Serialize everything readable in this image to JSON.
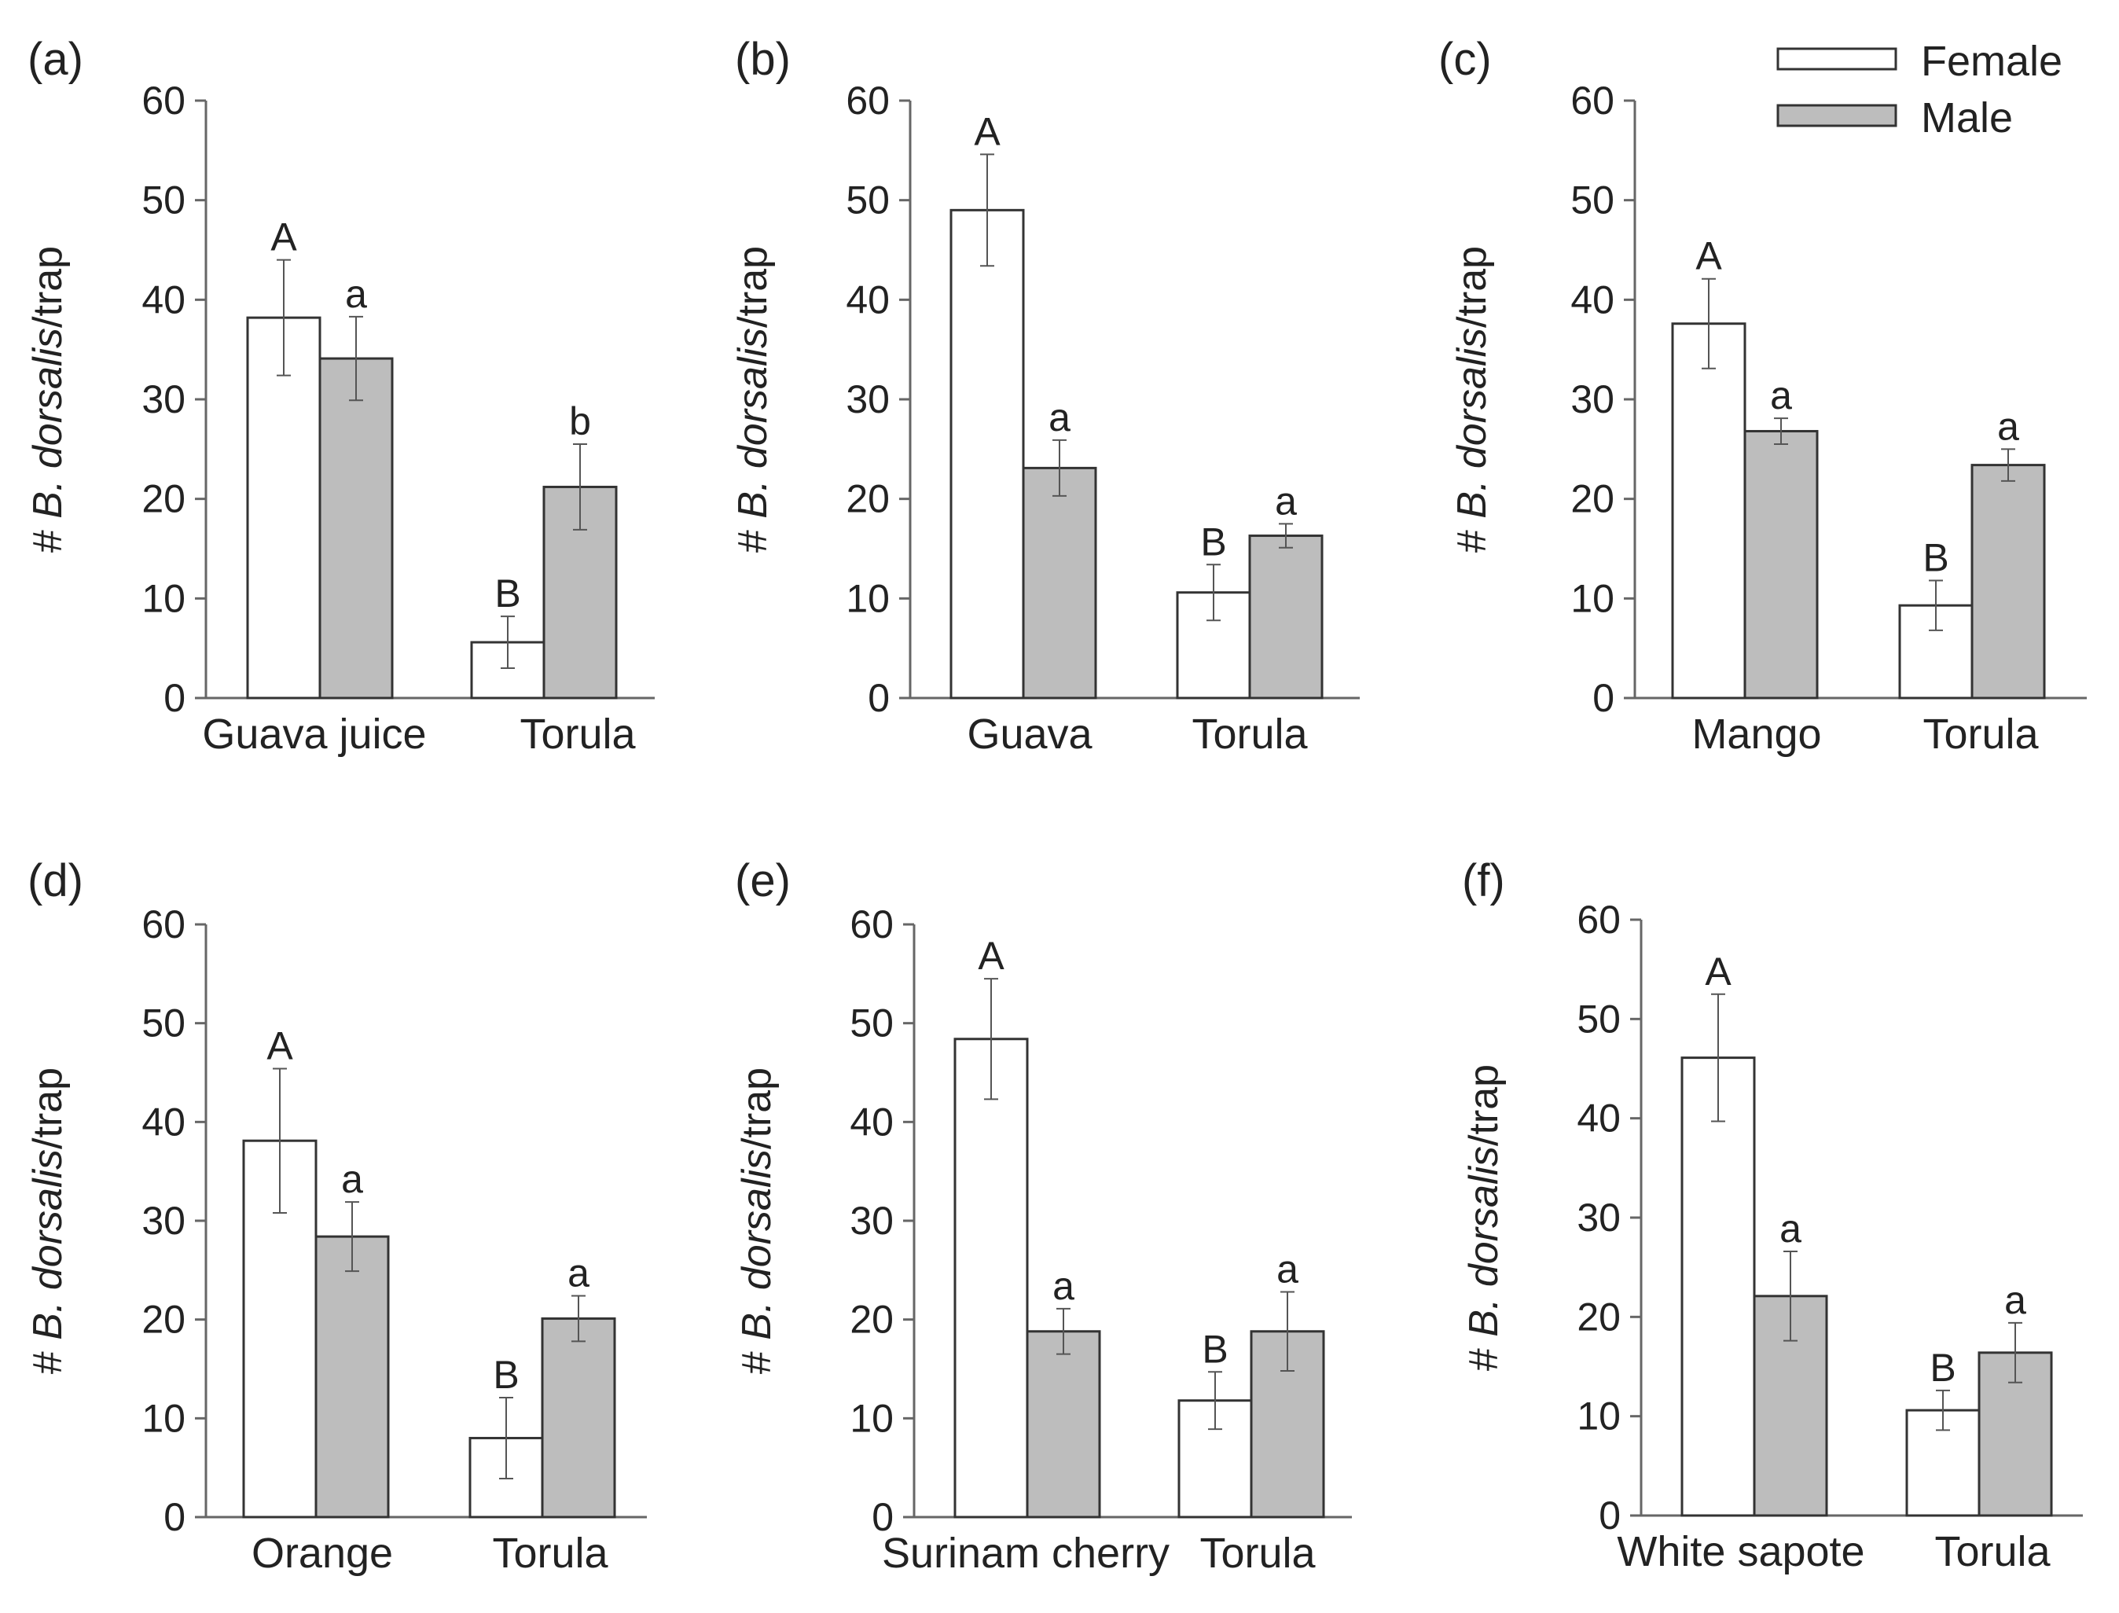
{
  "figure": {
    "legend": {
      "female": "Female",
      "male": "Male"
    },
    "colors": {
      "female": "#ffffff",
      "male": "#bdbdbd",
      "stroke": "#333333",
      "error": "#555555"
    }
  },
  "chart_data": [
    {
      "type": "bar",
      "panel_label": "(a)",
      "categories": [
        "Guava juice",
        "Torula"
      ],
      "series": [
        {
          "name": "Female",
          "values": [
            38.2,
            5.6
          ],
          "errors": [
            5.8,
            2.6
          ],
          "letters": [
            "A",
            "B"
          ]
        },
        {
          "name": "Male",
          "values": [
            34.1,
            21.2
          ],
          "errors": [
            4.2,
            4.3
          ],
          "letters": [
            "a",
            "b"
          ]
        }
      ],
      "ylabel_prefix": "# ",
      "ylabel_italic": "B. dorsalis",
      "ylabel_suffix": "/trap",
      "ylim": [
        0,
        60
      ],
      "yticks": [
        0,
        10,
        20,
        30,
        40,
        50,
        60
      ]
    },
    {
      "type": "bar",
      "panel_label": "(b)",
      "categories": [
        "Guava",
        "Torula"
      ],
      "series": [
        {
          "name": "Female",
          "values": [
            49.0,
            10.6
          ],
          "errors": [
            5.6,
            2.8
          ],
          "letters": [
            "A",
            "B"
          ]
        },
        {
          "name": "Male",
          "values": [
            23.1,
            16.3
          ],
          "errors": [
            2.8,
            1.2
          ],
          "letters": [
            "a",
            "a"
          ]
        }
      ],
      "ylabel_prefix": "# ",
      "ylabel_italic": "B. dorsalis",
      "ylabel_suffix": "/trap",
      "ylim": [
        0,
        60
      ],
      "yticks": [
        0,
        10,
        20,
        30,
        40,
        50,
        60
      ]
    },
    {
      "type": "bar",
      "panel_label": "(c)",
      "categories": [
        "Mango",
        "Torula"
      ],
      "series": [
        {
          "name": "Female",
          "values": [
            37.6,
            9.3
          ],
          "errors": [
            4.5,
            2.5
          ],
          "letters": [
            "A",
            "B"
          ]
        },
        {
          "name": "Male",
          "values": [
            26.8,
            23.4
          ],
          "errors": [
            1.3,
            1.6
          ],
          "letters": [
            "a",
            "a"
          ]
        }
      ],
      "ylabel_prefix": "# ",
      "ylabel_italic": "B. dorsalis",
      "ylabel_suffix": "/trap",
      "ylim": [
        0,
        60
      ],
      "yticks": [
        0,
        10,
        20,
        30,
        40,
        50,
        60
      ]
    },
    {
      "type": "bar",
      "panel_label": "(d)",
      "categories": [
        "Orange",
        "Torula"
      ],
      "series": [
        {
          "name": "Female",
          "values": [
            38.1,
            8.0
          ],
          "errors": [
            7.3,
            4.1
          ],
          "letters": [
            "A",
            "B"
          ]
        },
        {
          "name": "Male",
          "values": [
            28.4,
            20.1
          ],
          "errors": [
            3.5,
            2.3
          ],
          "letters": [
            "a",
            "a"
          ]
        }
      ],
      "ylabel_prefix": "# ",
      "ylabel_italic": "B. dorsalis",
      "ylabel_suffix": "/trap",
      "ylim": [
        0,
        60
      ],
      "yticks": [
        0,
        10,
        20,
        30,
        40,
        50,
        60
      ]
    },
    {
      "type": "bar",
      "panel_label": "(e)",
      "categories": [
        "Surinam cherry",
        "Torula"
      ],
      "series": [
        {
          "name": "Female",
          "values": [
            48.4,
            11.8
          ],
          "errors": [
            6.1,
            2.9
          ],
          "letters": [
            "A",
            "B"
          ]
        },
        {
          "name": "Male",
          "values": [
            18.8,
            18.8
          ],
          "errors": [
            2.3,
            4.0
          ],
          "letters": [
            "a",
            "a"
          ]
        }
      ],
      "ylabel_prefix": "# ",
      "ylabel_italic": "B. dorsalis",
      "ylabel_suffix": "/trap",
      "ylim": [
        0,
        60
      ],
      "yticks": [
        0,
        10,
        20,
        30,
        40,
        50,
        60
      ]
    },
    {
      "type": "bar",
      "panel_label": "(f)",
      "categories": [
        "White sapote",
        "Torula"
      ],
      "series": [
        {
          "name": "Female",
          "values": [
            46.1,
            10.6
          ],
          "errors": [
            6.4,
            2.0
          ],
          "letters": [
            "A",
            "B"
          ]
        },
        {
          "name": "Male",
          "values": [
            22.1,
            16.4
          ],
          "errors": [
            4.5,
            3.0
          ],
          "letters": [
            "a",
            "a"
          ]
        }
      ],
      "ylabel_prefix": "# ",
      "ylabel_italic": "B. dorsalis",
      "ylabel_suffix": "/trap",
      "ylim": [
        0,
        60
      ],
      "yticks": [
        0,
        10,
        20,
        30,
        40,
        50,
        60
      ]
    }
  ]
}
